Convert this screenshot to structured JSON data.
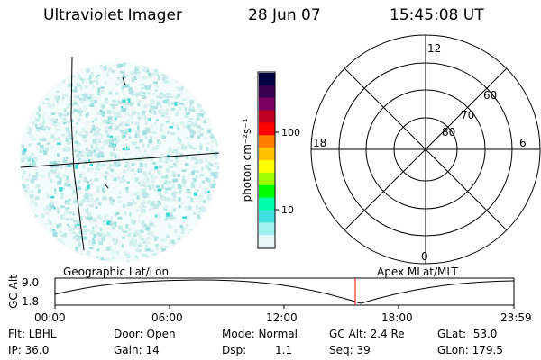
{
  "header": {
    "instrument": "Ultraviolet Imager",
    "date": "28 Jun 07",
    "time": "15:45:08 UT"
  },
  "geographic_panel": {
    "label": "Geographic Lat/Lon"
  },
  "polar_panel": {
    "label": "Apex MLat/MLT",
    "mlt_labels": [
      "12",
      "18",
      "6",
      "0"
    ],
    "mlat_labels": [
      "60",
      "70",
      "80"
    ]
  },
  "colorbar": {
    "unit_label": "photon cm⁻²s⁻¹",
    "tick_labels": [
      "100",
      "10"
    ],
    "colors": [
      "#000040",
      "#3a0050",
      "#7a0060",
      "#c00020",
      "#ff0000",
      "#ff8000",
      "#ffc000",
      "#ffff00",
      "#a0ff00",
      "#00ff00",
      "#00ffaa",
      "#40e0e0",
      "#a0f0f0",
      "#e8f8f8"
    ]
  },
  "altitude_plot": {
    "ylabel": "GC Alt",
    "y_ticks": [
      "9.0",
      "1.8"
    ],
    "x_ticks": [
      "00:00",
      "06:00",
      "12:00",
      "18:00",
      "23:59"
    ],
    "current_marker_color": "#ff0000"
  },
  "info": {
    "flt": "Flt: LBHL",
    "ip": "IP: 36.0",
    "door": "Door: Open",
    "gain": "Gain: 14",
    "mode": "Mode: Normal",
    "dsp_label": "Dsp:",
    "dsp_value": "1.1",
    "gc_alt": "GC Alt: 2.4 Re",
    "seq": "Seq: 39",
    "glat": "GLat:  53.0",
    "glon": "GLon: 179.5"
  }
}
